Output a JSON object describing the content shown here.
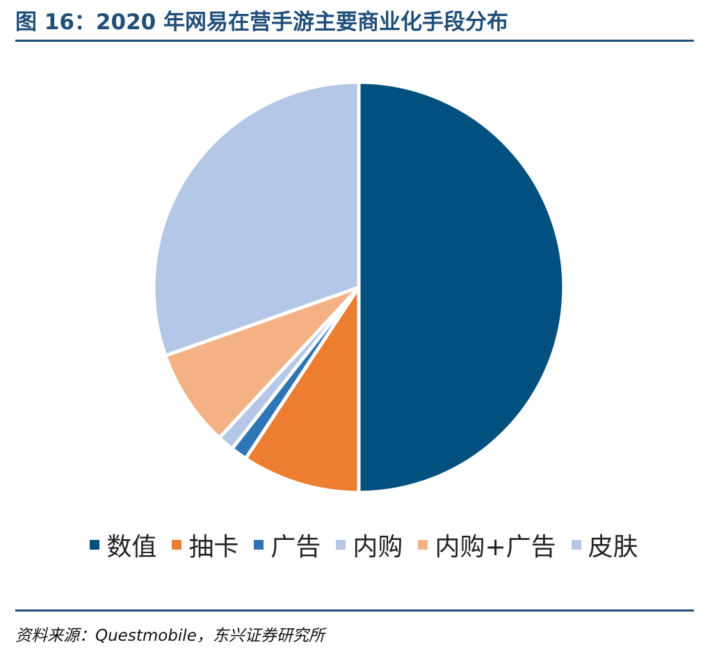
{
  "header": {
    "title": "图 16：2020 年网易在营手游主要商业化手段分布"
  },
  "chart_data": {
    "type": "pie",
    "title": "",
    "slices": [
      {
        "label": "数值",
        "value": 50.0,
        "color": "#01507f"
      },
      {
        "label": "抽卡",
        "value": 9.3,
        "color": "#ed7d31"
      },
      {
        "label": "广告",
        "value": 1.3,
        "color": "#2e75b6"
      },
      {
        "label": "内购",
        "value": 1.3,
        "color": "#b4c7e7"
      },
      {
        "label": "内购+广告",
        "value": 7.7,
        "color": "#f4b183"
      },
      {
        "label": "皮肤",
        "value": 30.4,
        "color": "#b4c7e7"
      }
    ],
    "start_angle": "12 o'clock",
    "direction": "clockwise",
    "legend_position": "bottom"
  },
  "footer": {
    "source": "资料来源：Questmobile，东兴证券研究所"
  }
}
